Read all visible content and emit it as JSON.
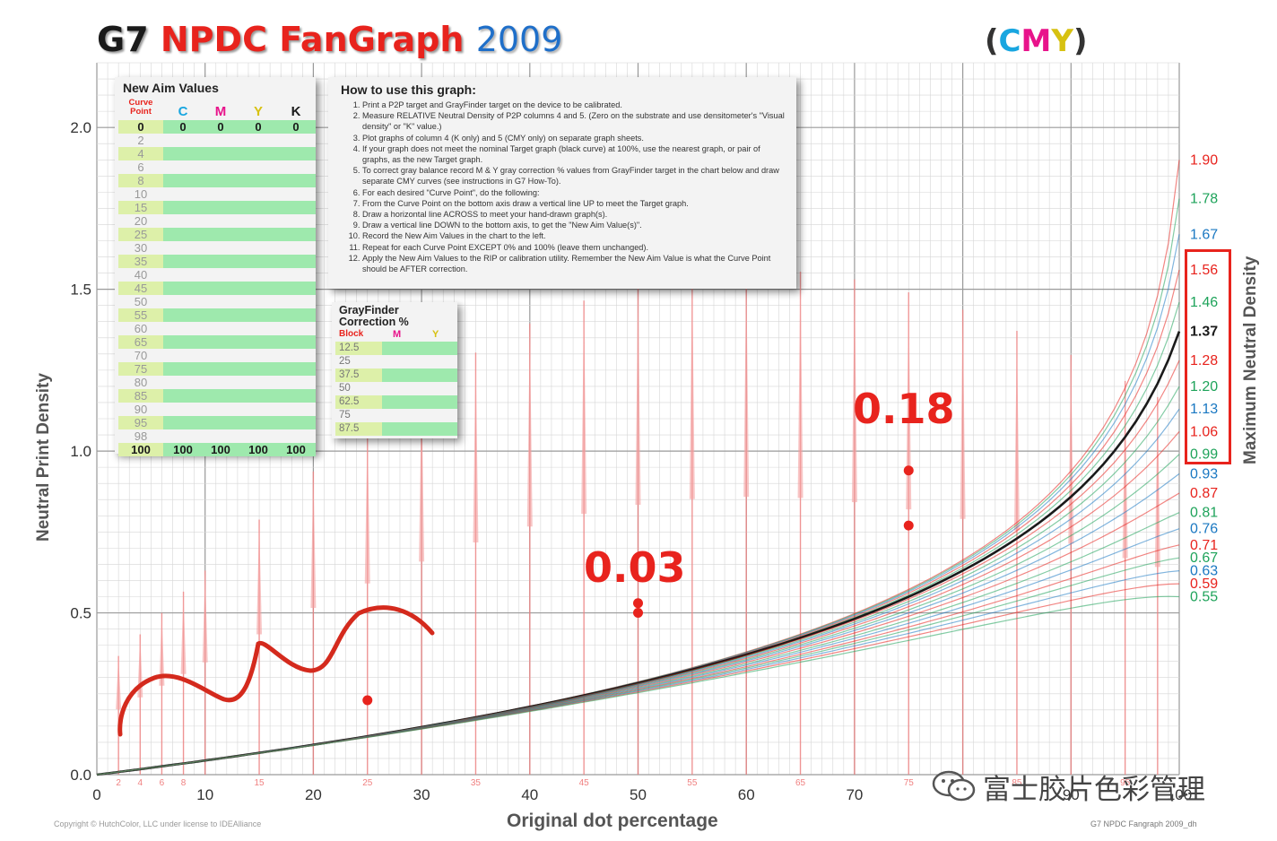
{
  "header": {
    "title_g7": "G7",
    "title_main": "NPDC FanGraph",
    "title_year": "2009",
    "cmy_open": "(",
    "cmy_c": "C",
    "cmy_m": "M",
    "cmy_y": "Y",
    "cmy_close": ")"
  },
  "chart_data": {
    "type": "line",
    "title": "G7 NPDC FanGraph 2009",
    "xlabel": "Original dot percentage",
    "ylabel": "Neutral Print Density",
    "ylabel_right": "Maximum Neutral Density",
    "xlim": [
      0,
      100
    ],
    "ylim": [
      0,
      2.2
    ],
    "x_ticks": [
      0,
      10,
      20,
      30,
      40,
      50,
      60,
      70,
      80,
      90,
      100
    ],
    "x_tick_labels": [
      "0",
      "10",
      "20",
      "30",
      "40",
      "50",
      "60",
      "70",
      "80",
      "90",
      "100"
    ],
    "x_minor_ticks": [
      2,
      4,
      6,
      8,
      15,
      25,
      35,
      45,
      55,
      65,
      75,
      85,
      95
    ],
    "x_minor_tick_labels": [
      "2",
      "4",
      "6",
      "8",
      "15",
      "25",
      "35",
      "45",
      "55",
      "65",
      "75",
      "85",
      "95"
    ],
    "y_ticks": [
      0.0,
      0.5,
      1.0,
      1.5,
      2.0
    ],
    "y_tick_labels": [
      "0.0",
      "0.5",
      "1.0",
      "1.5",
      "2.0"
    ],
    "grid": true,
    "target_max_density": 1.37,
    "curve_colors": {
      "red": "#e8231d",
      "green": "#1ea35a",
      "blue": "#1a78c2",
      "black": "#1a1a1a"
    },
    "max_density_labels": [
      {
        "value": "1.90",
        "color": "red"
      },
      {
        "value": "1.78",
        "color": "green"
      },
      {
        "value": "1.67",
        "color": "blue"
      },
      {
        "value": "1.56",
        "color": "red"
      },
      {
        "value": "1.46",
        "color": "green"
      },
      {
        "value": "1.37",
        "color": "black"
      },
      {
        "value": "1.28",
        "color": "red"
      },
      {
        "value": "1.20",
        "color": "green"
      },
      {
        "value": "1.13",
        "color": "blue"
      },
      {
        "value": "1.06",
        "color": "red"
      },
      {
        "value": "0.99",
        "color": "green"
      },
      {
        "value": "0.93",
        "color": "blue"
      },
      {
        "value": "0.87",
        "color": "red"
      },
      {
        "value": "0.81",
        "color": "green"
      },
      {
        "value": "0.76",
        "color": "blue"
      },
      {
        "value": "0.71",
        "color": "red"
      },
      {
        "value": "0.67",
        "color": "green"
      },
      {
        "value": "0.63",
        "color": "blue"
      },
      {
        "value": "0.59",
        "color": "red"
      },
      {
        "value": "0.55",
        "color": "green"
      }
    ],
    "measured_points": [
      {
        "x": 25,
        "y": 0.23
      },
      {
        "x": 50,
        "y": 0.53
      },
      {
        "x": 50,
        "y": 0.5
      },
      {
        "x": 75,
        "y": 0.94
      },
      {
        "x": 75,
        "y": 0.77
      }
    ],
    "annotations": [
      {
        "text": "0.03",
        "x": 50
      },
      {
        "text": "0.18",
        "x": 75
      }
    ]
  },
  "new_aim": {
    "title": "New Aim Values",
    "col_curve_point": "Curve Point",
    "col_c": "C",
    "col_m": "M",
    "col_y": "Y",
    "col_k": "K",
    "rows": [
      {
        "cp": "0",
        "c": "0",
        "m": "0",
        "y": "0",
        "k": "0"
      },
      {
        "cp": "2"
      },
      {
        "cp": "4"
      },
      {
        "cp": "6"
      },
      {
        "cp": "8"
      },
      {
        "cp": "10"
      },
      {
        "cp": "15"
      },
      {
        "cp": "20"
      },
      {
        "cp": "25"
      },
      {
        "cp": "30"
      },
      {
        "cp": "35"
      },
      {
        "cp": "40"
      },
      {
        "cp": "45"
      },
      {
        "cp": "50"
      },
      {
        "cp": "55"
      },
      {
        "cp": "60"
      },
      {
        "cp": "65"
      },
      {
        "cp": "70"
      },
      {
        "cp": "75"
      },
      {
        "cp": "80"
      },
      {
        "cp": "85"
      },
      {
        "cp": "90"
      },
      {
        "cp": "95"
      },
      {
        "cp": "98"
      },
      {
        "cp": "100",
        "c": "100",
        "m": "100",
        "y": "100",
        "k": "100"
      }
    ]
  },
  "howto": {
    "title": "How to use this graph:",
    "steps": [
      "Print a P2P target and GrayFinder target on the device to be calibrated.",
      "Measure RELATIVE Neutral Density of P2P columns 4 and 5. (Zero on the substrate and use densitometer's \"Visual density\" or \"K\" value.)",
      "Plot graphs of column 4 (K only) and 5 (CMY only) on separate graph sheets.",
      "If your graph does not meet the nominal Target graph (black curve) at 100%, use the nearest graph, or pair of graphs, as the new Target graph.",
      "To correct gray balance record M & Y gray correction % values from GrayFinder target in the chart below and draw separate CMY curves (see instructions in G7 How-To).",
      "For each desired \"Curve Point\", do the following:",
      "From the Curve Point on the bottom axis draw a vertical line UP to meet the Target graph.",
      "Draw a horizontal line ACROSS to meet your hand-drawn graph(s).",
      "Draw a vertical line DOWN to the bottom axis, to get the \"New Aim Value(s)\".",
      "Record the New Aim Values in the chart to the left.",
      "Repeat for each Curve Point EXCEPT 0% and 100% (leave them unchanged).",
      "Apply the New Aim Values to the RIP or calibration utility. Remember the New Aim Value is what the Curve Point should be AFTER correction."
    ]
  },
  "grayfinder": {
    "title_line1": "GrayFinder",
    "title_line2": "Correction %",
    "col_block": "Block",
    "col_m": "M",
    "col_y": "Y",
    "blocks": [
      "12.5",
      "25",
      "37.5",
      "50",
      "62.5",
      "75",
      "87.5"
    ]
  },
  "footer": {
    "copyright": "Copyright © HutchColor, LLC under license to IDEAlliance",
    "right": "G7 NPDC Fangraph 2009_dh"
  },
  "watermark": {
    "text": "富士胶片色彩管理"
  }
}
